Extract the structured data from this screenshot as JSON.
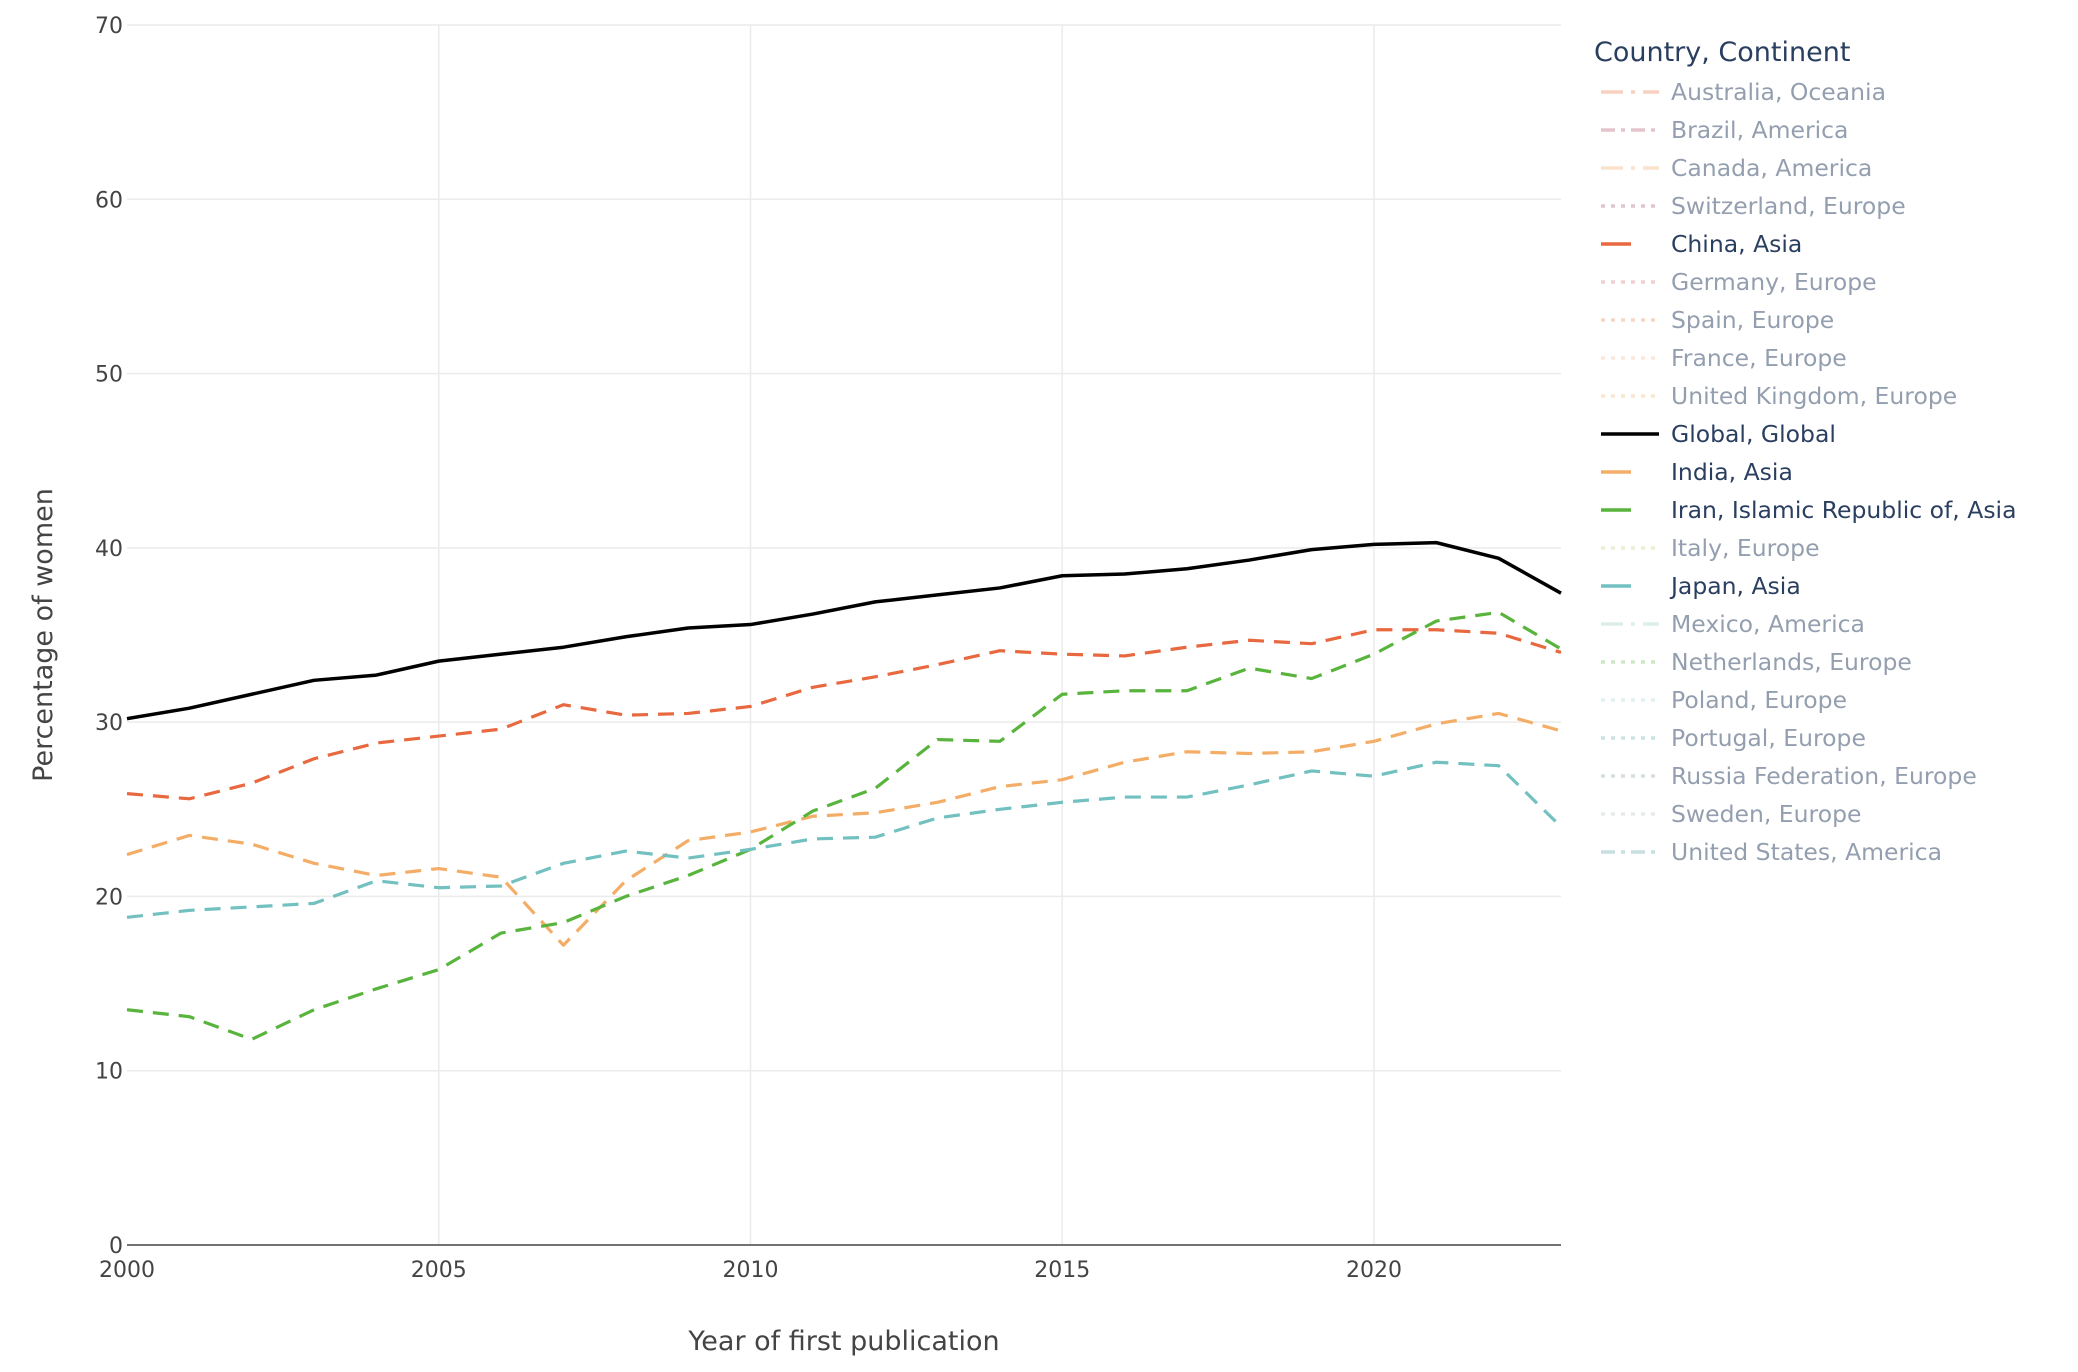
{
  "chart_data": {
    "type": "line",
    "title": "",
    "xlabel": "Year of first publication",
    "ylabel": "Percentage of women",
    "xlim": [
      2000,
      2023
    ],
    "ylim": [
      0,
      70
    ],
    "xticks": [
      2000,
      2005,
      2010,
      2015,
      2020
    ],
    "yticks": [
      0,
      10,
      20,
      30,
      40,
      50,
      60,
      70
    ],
    "grid": true,
    "legend": {
      "title": "Country, Continent",
      "placement": "right",
      "entries": [
        {
          "label": "Australia, Oceania",
          "color": "#f4a582",
          "dash": "longdashdot",
          "visible": false
        },
        {
          "label": "Brazil, America",
          "color": "#c98a9a",
          "dash": "dashdot",
          "visible": false
        },
        {
          "label": "Canada, America",
          "color": "#f5c99a",
          "dash": "longdashdot",
          "visible": false
        },
        {
          "label": "Switzerland, Europe",
          "color": "#c48a9a",
          "dash": "dot",
          "visible": false
        },
        {
          "label": "China, Asia",
          "color": "#e8683f",
          "dash": "dash",
          "visible": true
        },
        {
          "label": "Germany, Europe",
          "color": "#e3a3a3",
          "dash": "dot",
          "visible": false
        },
        {
          "label": "Spain, Europe",
          "color": "#f5b08a",
          "dash": "dot",
          "visible": false
        },
        {
          "label": "France, Europe",
          "color": "#f8d3b8",
          "dash": "dot",
          "visible": false
        },
        {
          "label": "United Kingdom, Europe",
          "color": "#f3cfa0",
          "dash": "dot",
          "visible": false
        },
        {
          "label": "Global, Global",
          "color": "#000000",
          "dash": "solid",
          "visible": true
        },
        {
          "label": "India, Asia",
          "color": "#f4ad66",
          "dash": "dash",
          "visible": true
        },
        {
          "label": "Iran, Islamic Republic of, Asia",
          "color": "#58b43c",
          "dash": "dash",
          "visible": true
        },
        {
          "label": "Italy, Europe",
          "color": "#dfe0a8",
          "dash": "dot",
          "visible": false
        },
        {
          "label": "Japan, Asia",
          "color": "#72c0c0",
          "dash": "dash",
          "visible": true
        },
        {
          "label": "Mexico, America",
          "color": "#bcdcd6",
          "dash": "longdashdot",
          "visible": false
        },
        {
          "label": "Netherlands, Europe",
          "color": "#9ad48a",
          "dash": "dot",
          "visible": false
        },
        {
          "label": "Poland, Europe",
          "color": "#c9e2e2",
          "dash": "dot",
          "visible": false
        },
        {
          "label": "Portugal, Europe",
          "color": "#98c8c8",
          "dash": "dot",
          "visible": false
        },
        {
          "label": "Russia Federation, Europe",
          "color": "#a8c0c0",
          "dash": "dot",
          "visible": false
        },
        {
          "label": "Sweden, Europe",
          "color": "#d0d6d6",
          "dash": "dot",
          "visible": false
        },
        {
          "label": "United States, America",
          "color": "#90c0c0",
          "dash": "dashdot",
          "visible": false
        }
      ]
    },
    "x": [
      2000,
      2001,
      2002,
      2003,
      2004,
      2005,
      2006,
      2007,
      2008,
      2009,
      2010,
      2011,
      2012,
      2013,
      2014,
      2015,
      2016,
      2017,
      2018,
      2019,
      2020,
      2021,
      2022,
      2023
    ],
    "series": [
      {
        "name": "Global, Global",
        "color": "#000000",
        "dash": "solid",
        "values": [
          30.2,
          30.8,
          31.6,
          32.4,
          32.7,
          33.5,
          33.9,
          34.3,
          34.9,
          35.4,
          35.6,
          36.2,
          36.9,
          37.3,
          37.7,
          38.4,
          38.5,
          38.8,
          39.3,
          39.9,
          40.2,
          40.3,
          39.4,
          37.4
        ]
      },
      {
        "name": "China, Asia",
        "color": "#e8683f",
        "dash": "dash",
        "values": [
          25.9,
          25.6,
          26.5,
          27.9,
          28.8,
          29.2,
          29.6,
          31.0,
          30.4,
          30.5,
          30.9,
          32.0,
          32.6,
          33.3,
          34.1,
          33.9,
          33.8,
          34.3,
          34.7,
          34.5,
          35.3,
          35.3,
          35.1,
          34.0
        ]
      },
      {
        "name": "India, Asia",
        "color": "#f4ad66",
        "dash": "dash",
        "values": [
          22.4,
          23.5,
          23.0,
          21.9,
          21.2,
          21.6,
          21.1,
          17.2,
          20.9,
          23.2,
          23.7,
          24.6,
          24.8,
          25.4,
          26.3,
          26.7,
          27.7,
          28.3,
          28.2,
          28.3,
          28.9,
          29.9,
          30.5,
          29.5
        ]
      },
      {
        "name": "Iran, Islamic Republic of, Asia",
        "color": "#58b43c",
        "dash": "dash",
        "values": [
          13.5,
          13.1,
          11.8,
          13.5,
          14.7,
          15.8,
          17.9,
          18.5,
          20.0,
          21.2,
          22.7,
          24.9,
          26.2,
          29.0,
          28.9,
          31.6,
          31.8,
          31.8,
          33.1,
          32.5,
          33.9,
          35.8,
          36.3,
          34.2
        ]
      },
      {
        "name": "Japan, Asia",
        "color": "#72c0c0",
        "dash": "dash",
        "values": [
          18.8,
          19.2,
          19.4,
          19.6,
          20.9,
          20.5,
          20.6,
          21.9,
          22.6,
          22.2,
          22.7,
          23.3,
          23.4,
          24.5,
          25.0,
          25.4,
          25.7,
          25.7,
          26.4,
          27.2,
          26.9,
          27.7,
          27.5,
          24.0
        ]
      }
    ]
  }
}
